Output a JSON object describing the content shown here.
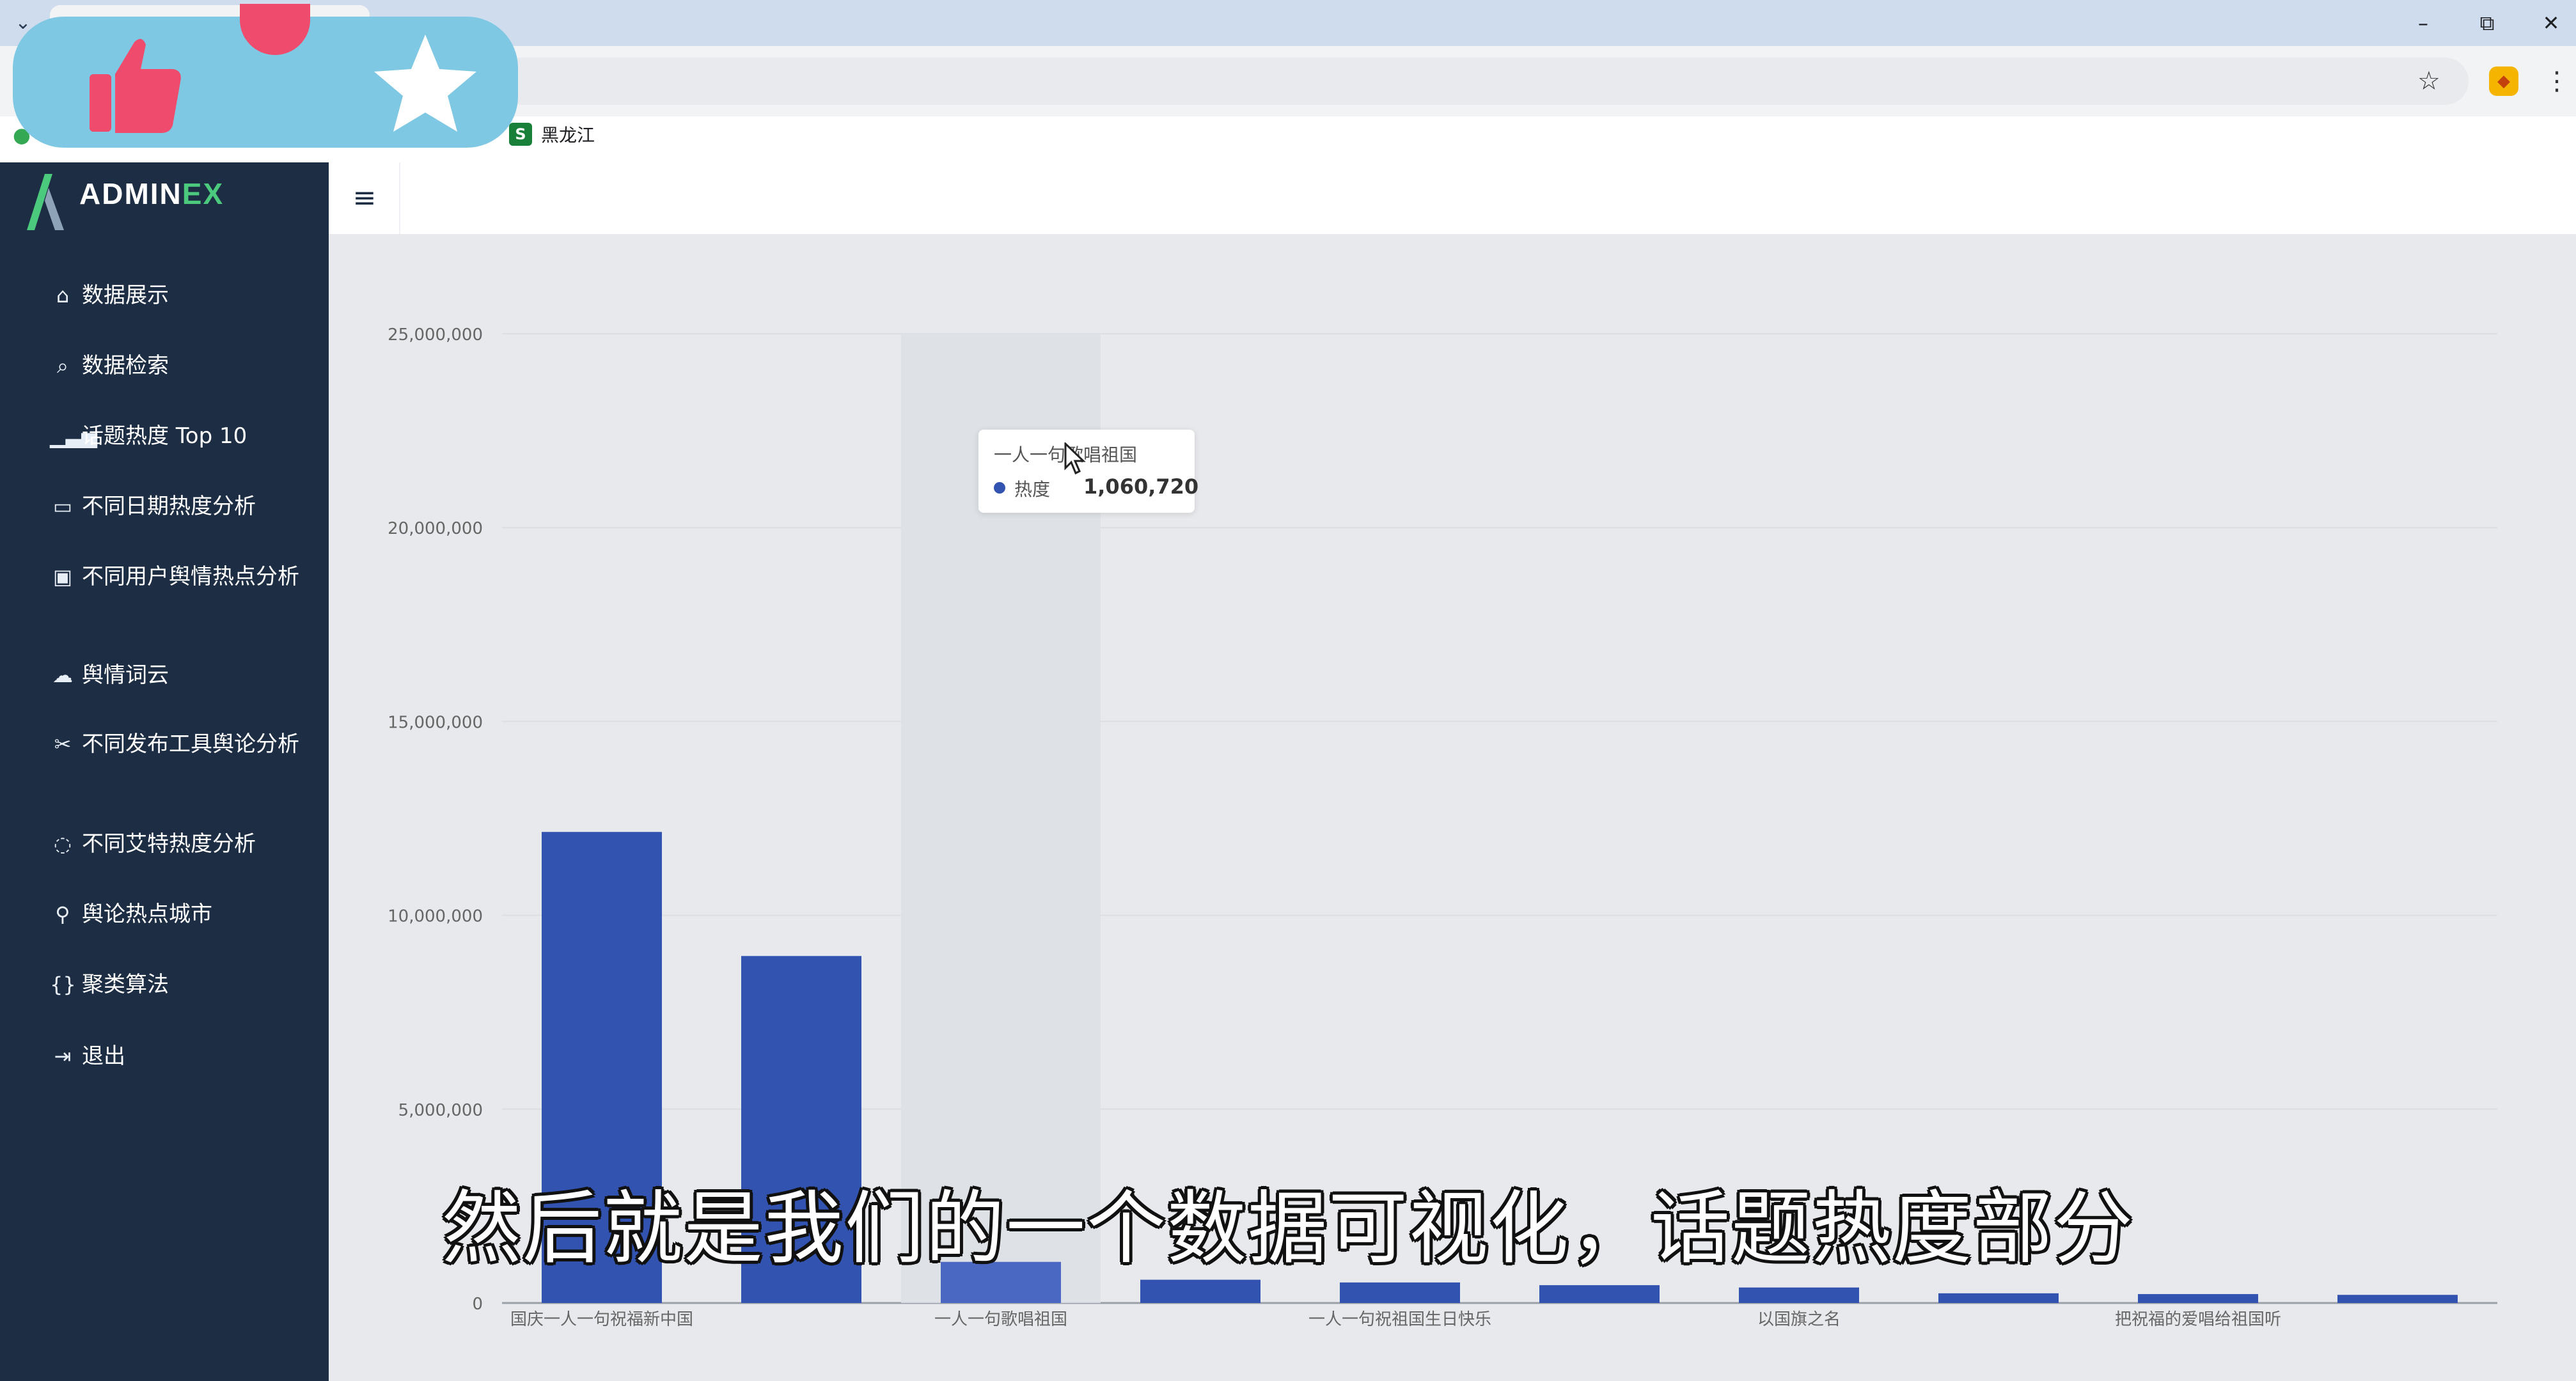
{
  "browser": {
    "bookmark_label": "黑龙江",
    "bookmark_favicon_letter": "S",
    "icons": {
      "tab_list": "chevron-down-icon",
      "minimize": "minimize-icon",
      "restore": "restore-icon",
      "close": "close-icon",
      "bookmark_star": "star-outline-icon",
      "extension": "extension-icon",
      "menu": "kebab-icon",
      "maps": "map-pin-icon"
    }
  },
  "overlay": {
    "icons": [
      "thumbs-up-icon",
      "star-icon"
    ],
    "colors": {
      "background": "#7fc8e4",
      "accent": "#ef4b6c"
    }
  },
  "sidebar": {
    "logo_main": "ADMIN",
    "logo_accent": "EX",
    "items": [
      {
        "label": "数据展示",
        "icon": "home-icon"
      },
      {
        "label": "数据检索",
        "icon": "search-icon"
      },
      {
        "label": "话题热度 Top 10",
        "icon": "bar-chart-icon"
      },
      {
        "label": "不同日期热度分析",
        "icon": "calendar-icon"
      },
      {
        "label": "不同用户舆情热点分析",
        "icon": "user-badge-icon"
      },
      {
        "label": "舆情词云",
        "icon": "cloud-icon"
      },
      {
        "label": "不同发布工具舆论分析",
        "icon": "tools-icon"
      },
      {
        "label": "不同艾特热度分析",
        "icon": "comment-icon"
      },
      {
        "label": "舆论热点城市",
        "icon": "location-pin-icon"
      },
      {
        "label": "聚类算法",
        "icon": "braces-icon"
      },
      {
        "label": "退出",
        "icon": "logout-icon"
      }
    ],
    "colors": {
      "background": "#1d2d44",
      "accent": "#4bc97d"
    }
  },
  "header": {
    "menu_icon": "hamburger-icon"
  },
  "chart_data": {
    "type": "bar",
    "categories": [
      "国庆一人一句祝福新中国",
      "",
      "一人一句歌唱祖国",
      "",
      "一人一句祝祖国生日快乐",
      "",
      "以国旗之名",
      "",
      "把祝福的爱唱给祖国听",
      ""
    ],
    "values": [
      12150000,
      8950000,
      1060720,
      600000,
      530000,
      460000,
      400000,
      250000,
      230000,
      210000
    ],
    "ylim": [
      0,
      25000000
    ],
    "yticks": [
      0,
      5000000,
      10000000,
      15000000,
      20000000,
      25000000
    ],
    "ytick_labels": [
      "0",
      "5,000,000",
      "10,000,000",
      "15,000,000",
      "20,000,000",
      "25,000,000"
    ],
    "series_name": "热度",
    "highlight_index": 2,
    "grid": true,
    "colors": {
      "bar": "#3353b1",
      "highlight_bar": "#4a68c2"
    }
  },
  "tooltip": {
    "title": "一人一句歌唱祖国",
    "series": "热度",
    "value": "1,060,720"
  },
  "subtitle": "然后就是我们的一个数据可视化，话题热度部分"
}
